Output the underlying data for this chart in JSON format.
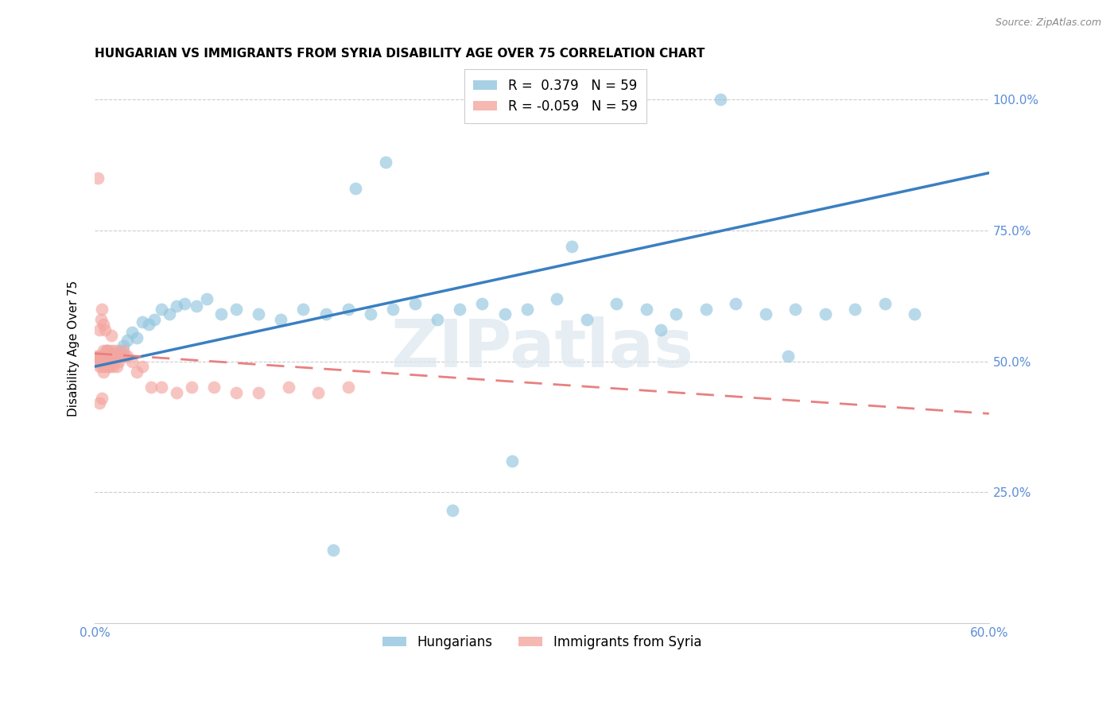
{
  "title": "HUNGARIAN VS IMMIGRANTS FROM SYRIA DISABILITY AGE OVER 75 CORRELATION CHART",
  "source": "Source: ZipAtlas.com",
  "ylabel": "Disability Age Over 75",
  "xlim": [
    0.0,
    0.6
  ],
  "ylim": [
    0.0,
    1.05
  ],
  "xtick_positions": [
    0.0,
    0.1,
    0.2,
    0.3,
    0.4,
    0.5,
    0.6
  ],
  "xticklabels": [
    "0.0%",
    "",
    "",
    "",
    "",
    "",
    "60.0%"
  ],
  "ytick_positions": [
    0.0,
    0.25,
    0.5,
    0.75,
    1.0
  ],
  "yticklabels_right": [
    "",
    "25.0%",
    "50.0%",
    "75.0%",
    "100.0%"
  ],
  "legend_line1": "R =  0.379   N = 59",
  "legend_line2": "R = -0.059   N = 59",
  "hungarian_color": "#92c5de",
  "syria_color": "#f4a6a0",
  "trend_hungarian_color": "#3a7fc1",
  "trend_syria_color": "#e88080",
  "background_color": "#ffffff",
  "grid_color": "#cccccc",
  "watermark": "ZIPatlas",
  "axis_color": "#5b8dd9",
  "title_fontsize": 11,
  "label_fontsize": 11,
  "tick_fontsize": 11,
  "legend_fontsize": 12,
  "hungarian_x": [
    0.003,
    0.005,
    0.006,
    0.008,
    0.01,
    0.012,
    0.013,
    0.015,
    0.017,
    0.019,
    0.022,
    0.025,
    0.028,
    0.032,
    0.036,
    0.04,
    0.045,
    0.05,
    0.055,
    0.06,
    0.068,
    0.075,
    0.085,
    0.095,
    0.11,
    0.125,
    0.14,
    0.155,
    0.17,
    0.185,
    0.2,
    0.215,
    0.23,
    0.245,
    0.26,
    0.275,
    0.29,
    0.31,
    0.33,
    0.35,
    0.37,
    0.39,
    0.41,
    0.43,
    0.45,
    0.47,
    0.49,
    0.51,
    0.53,
    0.55,
    0.28,
    0.175,
    0.32,
    0.38,
    0.24,
    0.16,
    0.42,
    0.465,
    0.195
  ],
  "hungarian_y": [
    0.505,
    0.51,
    0.5,
    0.52,
    0.515,
    0.505,
    0.51,
    0.515,
    0.52,
    0.53,
    0.54,
    0.555,
    0.545,
    0.575,
    0.57,
    0.58,
    0.6,
    0.59,
    0.605,
    0.61,
    0.605,
    0.62,
    0.59,
    0.6,
    0.59,
    0.58,
    0.6,
    0.59,
    0.6,
    0.59,
    0.6,
    0.61,
    0.58,
    0.6,
    0.61,
    0.59,
    0.6,
    0.62,
    0.58,
    0.61,
    0.6,
    0.59,
    0.6,
    0.61,
    0.59,
    0.6,
    0.59,
    0.6,
    0.61,
    0.59,
    0.31,
    0.83,
    0.72,
    0.56,
    0.215,
    0.14,
    1.0,
    0.51,
    0.88
  ],
  "syria_x": [
    0.001,
    0.002,
    0.002,
    0.003,
    0.003,
    0.004,
    0.004,
    0.005,
    0.005,
    0.006,
    0.006,
    0.007,
    0.007,
    0.008,
    0.008,
    0.009,
    0.009,
    0.01,
    0.01,
    0.011,
    0.011,
    0.012,
    0.013,
    0.014,
    0.015,
    0.016,
    0.017,
    0.018,
    0.019,
    0.02,
    0.022,
    0.025,
    0.028,
    0.032,
    0.038,
    0.045,
    0.055,
    0.065,
    0.08,
    0.095,
    0.11,
    0.13,
    0.15,
    0.17,
    0.003,
    0.004,
    0.005,
    0.006,
    0.007,
    0.008,
    0.009,
    0.01,
    0.011,
    0.012,
    0.013,
    0.014,
    0.015,
    0.003,
    0.005
  ],
  "syria_y": [
    0.51,
    0.5,
    0.85,
    0.51,
    0.56,
    0.5,
    0.58,
    0.51,
    0.6,
    0.52,
    0.57,
    0.51,
    0.56,
    0.52,
    0.51,
    0.5,
    0.52,
    0.51,
    0.49,
    0.52,
    0.55,
    0.51,
    0.51,
    0.52,
    0.51,
    0.5,
    0.51,
    0.51,
    0.52,
    0.51,
    0.51,
    0.5,
    0.48,
    0.49,
    0.45,
    0.45,
    0.44,
    0.45,
    0.45,
    0.44,
    0.44,
    0.45,
    0.44,
    0.45,
    0.49,
    0.5,
    0.49,
    0.48,
    0.49,
    0.5,
    0.49,
    0.5,
    0.51,
    0.49,
    0.5,
    0.51,
    0.49,
    0.42,
    0.43
  ],
  "trend_h_x0": 0.0,
  "trend_h_x1": 0.6,
  "trend_h_y0": 0.49,
  "trend_h_y1": 0.86,
  "trend_s_x0": 0.0,
  "trend_s_x1": 0.6,
  "trend_s_y0": 0.515,
  "trend_s_y1": 0.4
}
